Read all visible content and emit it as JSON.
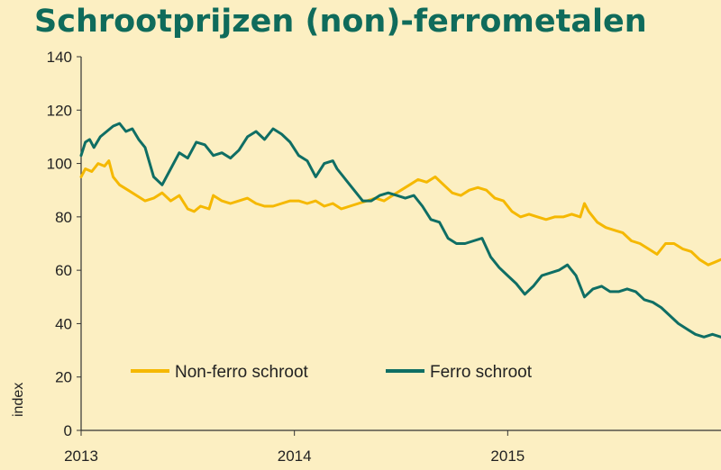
{
  "chart_data": {
    "type": "line",
    "title": "Schrootprijzen (non)-ferrometalen",
    "ylabel": "index",
    "xlabel": "",
    "ylim": [
      0,
      140
    ],
    "yticks": [
      0,
      20,
      40,
      60,
      80,
      100,
      120,
      140
    ],
    "xlim": [
      2013,
      2016
    ],
    "xticks": [
      {
        "value": 2013,
        "label": "2013"
      },
      {
        "value": 2014,
        "label": "2014"
      },
      {
        "value": 2015,
        "label": "2015"
      }
    ],
    "grid": false,
    "legend_position": "bottom-left",
    "series": [
      {
        "name": "Non-ferro schroot",
        "color": "#f5b800",
        "x": [
          2013.0,
          2013.02,
          2013.05,
          2013.08,
          2013.11,
          2013.13,
          2013.15,
          2013.18,
          2013.22,
          2013.26,
          2013.3,
          2013.34,
          2013.38,
          2013.42,
          2013.46,
          2013.5,
          2013.53,
          2013.56,
          2013.6,
          2013.62,
          2013.66,
          2013.7,
          2013.74,
          2013.78,
          2013.82,
          2013.86,
          2013.9,
          2013.94,
          2013.98,
          2014.02,
          2014.06,
          2014.1,
          2014.14,
          2014.18,
          2014.22,
          2014.26,
          2014.3,
          2014.34,
          2014.38,
          2014.42,
          2014.46,
          2014.5,
          2014.54,
          2014.58,
          2014.62,
          2014.66,
          2014.7,
          2014.74,
          2014.78,
          2014.82,
          2014.86,
          2014.9,
          2014.94,
          2014.98,
          2015.02,
          2015.06,
          2015.1,
          2015.14,
          2015.18,
          2015.22,
          2015.26,
          2015.3,
          2015.34,
          2015.36,
          2015.38,
          2015.42,
          2015.46,
          2015.5,
          2015.54,
          2015.58,
          2015.62,
          2015.66,
          2015.7,
          2015.74,
          2015.78,
          2015.82,
          2015.86,
          2015.9,
          2015.94,
          2015.97,
          2016.0
        ],
        "y": [
          95,
          98,
          97,
          100,
          99,
          101,
          95,
          92,
          90,
          88,
          86,
          87,
          89,
          86,
          88,
          83,
          82,
          84,
          83,
          88,
          86,
          85,
          86,
          87,
          85,
          84,
          84,
          85,
          86,
          86,
          85,
          86,
          84,
          85,
          83,
          84,
          85,
          86,
          87,
          86,
          88,
          90,
          92,
          94,
          93,
          95,
          92,
          89,
          88,
          90,
          91,
          90,
          87,
          86,
          82,
          80,
          81,
          80,
          79,
          80,
          80,
          81,
          80,
          85,
          82,
          78,
          76,
          75,
          74,
          71,
          70,
          68,
          66,
          70,
          70,
          68,
          67,
          64,
          62,
          63,
          64
        ]
      },
      {
        "name": "Ferro schroot",
        "color": "#0f6e64",
        "x": [
          2013.0,
          2013.02,
          2013.04,
          2013.06,
          2013.09,
          2013.12,
          2013.15,
          2013.18,
          2013.21,
          2013.24,
          2013.27,
          2013.3,
          2013.34,
          2013.38,
          2013.42,
          2013.46,
          2013.5,
          2013.54,
          2013.58,
          2013.62,
          2013.66,
          2013.7,
          2013.74,
          2013.78,
          2013.82,
          2013.86,
          2013.9,
          2013.94,
          2013.98,
          2014.02,
          2014.06,
          2014.1,
          2014.14,
          2014.18,
          2014.2,
          2014.24,
          2014.28,
          2014.32,
          2014.36,
          2014.4,
          2014.44,
          2014.48,
          2014.52,
          2014.56,
          2014.6,
          2014.64,
          2014.68,
          2014.72,
          2014.76,
          2014.8,
          2014.84,
          2014.88,
          2014.92,
          2014.96,
          2015.0,
          2015.04,
          2015.08,
          2015.12,
          2015.16,
          2015.2,
          2015.24,
          2015.28,
          2015.32,
          2015.36,
          2015.4,
          2015.44,
          2015.48,
          2015.52,
          2015.56,
          2015.6,
          2015.64,
          2015.68,
          2015.72,
          2015.76,
          2015.8,
          2015.84,
          2015.88,
          2015.92,
          2015.96,
          2016.0
        ],
        "y": [
          103,
          108,
          109,
          106,
          110,
          112,
          114,
          115,
          112,
          113,
          109,
          106,
          95,
          92,
          98,
          104,
          102,
          108,
          107,
          103,
          104,
          102,
          105,
          110,
          112,
          109,
          113,
          111,
          108,
          103,
          101,
          95,
          100,
          101,
          98,
          94,
          90,
          86,
          86,
          88,
          89,
          88,
          87,
          88,
          84,
          79,
          78,
          72,
          70,
          70,
          71,
          72,
          65,
          61,
          58,
          55,
          51,
          54,
          58,
          59,
          60,
          62,
          58,
          50,
          53,
          54,
          52,
          52,
          53,
          52,
          49,
          48,
          46,
          43,
          40,
          38,
          36,
          35,
          36,
          35
        ]
      }
    ]
  }
}
